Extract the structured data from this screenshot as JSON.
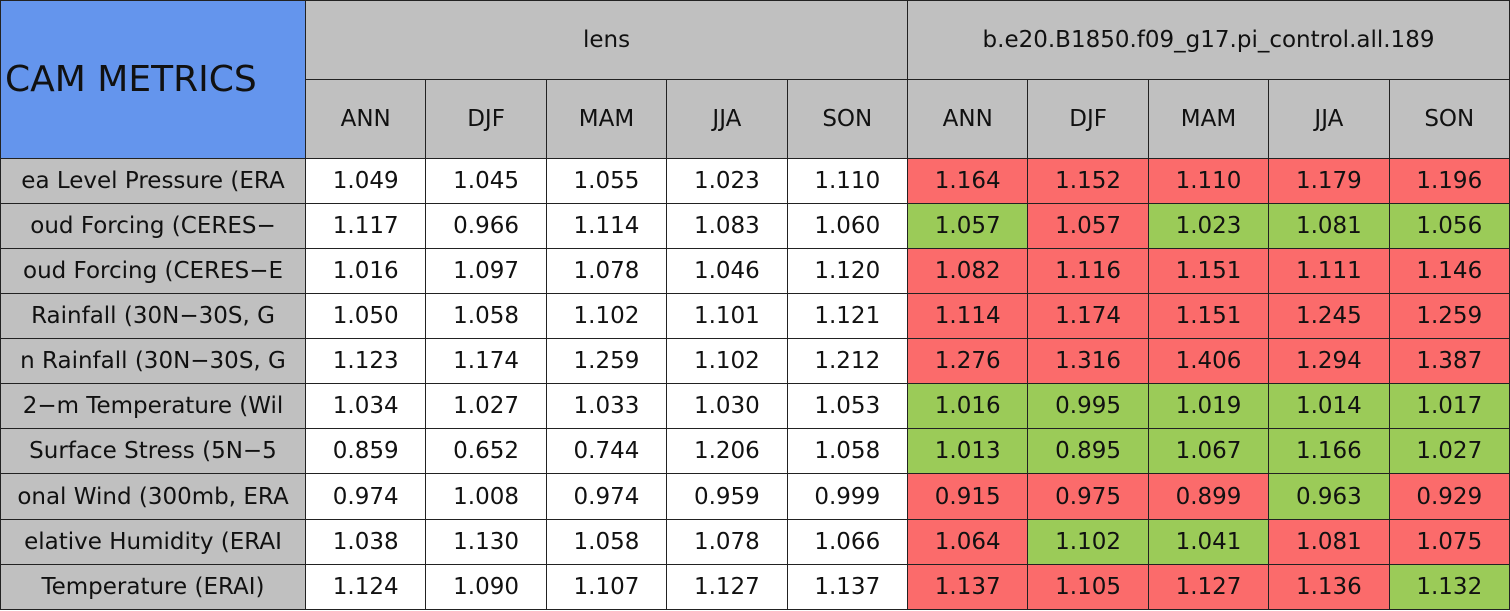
{
  "table": {
    "title": "CAM METRICS",
    "groups": [
      {
        "name": "lens",
        "seasons": [
          "ANN",
          "DJF",
          "MAM",
          "JJA",
          "SON"
        ]
      },
      {
        "name": "b.e20.B1850.f09_g17.pi_control.all.189",
        "seasons": [
          "ANN",
          "DJF",
          "MAM",
          "JJA",
          "SON"
        ]
      }
    ],
    "rows": [
      {
        "label": "ea Level Pressure (ERA",
        "lens": [
          "1.049",
          "1.045",
          "1.055",
          "1.023",
          "1.110"
        ],
        "control": [
          {
            "value": "1.164",
            "color": "#fb6b6b"
          },
          {
            "value": "1.152",
            "color": "#fb6b6b"
          },
          {
            "value": "1.110",
            "color": "#fb6b6b"
          },
          {
            "value": "1.179",
            "color": "#fb6b6b"
          },
          {
            "value": "1.196",
            "color": "#fb6b6b"
          }
        ]
      },
      {
        "label": "oud Forcing (CERES−",
        "lens": [
          "1.117",
          "0.966",
          "1.114",
          "1.083",
          "1.060"
        ],
        "control": [
          {
            "value": "1.057",
            "color": "#9bcb58"
          },
          {
            "value": "1.057",
            "color": "#fb6b6b"
          },
          {
            "value": "1.023",
            "color": "#9bcb58"
          },
          {
            "value": "1.081",
            "color": "#9bcb58"
          },
          {
            "value": "1.056",
            "color": "#9bcb58"
          }
        ]
      },
      {
        "label": "oud Forcing (CERES−E",
        "lens": [
          "1.016",
          "1.097",
          "1.078",
          "1.046",
          "1.120"
        ],
        "control": [
          {
            "value": "1.082",
            "color": "#fb6b6b"
          },
          {
            "value": "1.116",
            "color": "#fb6b6b"
          },
          {
            "value": "1.151",
            "color": "#fb6b6b"
          },
          {
            "value": "1.111",
            "color": "#fb6b6b"
          },
          {
            "value": "1.146",
            "color": "#fb6b6b"
          }
        ]
      },
      {
        "label": "Rainfall (30N−30S, G",
        "lens": [
          "1.050",
          "1.058",
          "1.102",
          "1.101",
          "1.121"
        ],
        "control": [
          {
            "value": "1.114",
            "color": "#fb6b6b"
          },
          {
            "value": "1.174",
            "color": "#fb6b6b"
          },
          {
            "value": "1.151",
            "color": "#fb6b6b"
          },
          {
            "value": "1.245",
            "color": "#fb6b6b"
          },
          {
            "value": "1.259",
            "color": "#fb6b6b"
          }
        ]
      },
      {
        "label": "n Rainfall (30N−30S, G",
        "lens": [
          "1.123",
          "1.174",
          "1.259",
          "1.102",
          "1.212"
        ],
        "control": [
          {
            "value": "1.276",
            "color": "#fb6b6b"
          },
          {
            "value": "1.316",
            "color": "#fb6b6b"
          },
          {
            "value": "1.406",
            "color": "#fb6b6b"
          },
          {
            "value": "1.294",
            "color": "#fb6b6b"
          },
          {
            "value": "1.387",
            "color": "#fb6b6b"
          }
        ]
      },
      {
        "label": "2−m Temperature (Wil",
        "lens": [
          "1.034",
          "1.027",
          "1.033",
          "1.030",
          "1.053"
        ],
        "control": [
          {
            "value": "1.016",
            "color": "#9bcb58"
          },
          {
            "value": "0.995",
            "color": "#9bcb58"
          },
          {
            "value": "1.019",
            "color": "#9bcb58"
          },
          {
            "value": "1.014",
            "color": "#9bcb58"
          },
          {
            "value": "1.017",
            "color": "#9bcb58"
          }
        ]
      },
      {
        "label": "Surface Stress (5N−5",
        "lens": [
          "0.859",
          "0.652",
          "0.744",
          "1.206",
          "1.058"
        ],
        "control": [
          {
            "value": "1.013",
            "color": "#9bcb58"
          },
          {
            "value": "0.895",
            "color": "#9bcb58"
          },
          {
            "value": "1.067",
            "color": "#9bcb58"
          },
          {
            "value": "1.166",
            "color": "#9bcb58"
          },
          {
            "value": "1.027",
            "color": "#9bcb58"
          }
        ]
      },
      {
        "label": "onal Wind (300mb, ERA",
        "lens": [
          "0.974",
          "1.008",
          "0.974",
          "0.959",
          "0.999"
        ],
        "control": [
          {
            "value": "0.915",
            "color": "#fb6b6b"
          },
          {
            "value": "0.975",
            "color": "#fb6b6b"
          },
          {
            "value": "0.899",
            "color": "#fb6b6b"
          },
          {
            "value": "0.963",
            "color": "#9bcb58"
          },
          {
            "value": "0.929",
            "color": "#fb6b6b"
          }
        ]
      },
      {
        "label": "elative Humidity (ERAI",
        "lens": [
          "1.038",
          "1.130",
          "1.058",
          "1.078",
          "1.066"
        ],
        "control": [
          {
            "value": "1.064",
            "color": "#fb6b6b"
          },
          {
            "value": "1.102",
            "color": "#9bcb58"
          },
          {
            "value": "1.041",
            "color": "#9bcb58"
          },
          {
            "value": "1.081",
            "color": "#fb6b6b"
          },
          {
            "value": "1.075",
            "color": "#fb6b6b"
          }
        ]
      },
      {
        "label": "Temperature (ERAI)",
        "lens": [
          "1.124",
          "1.090",
          "1.107",
          "1.127",
          "1.137"
        ],
        "control": [
          {
            "value": "1.137",
            "color": "#fb6b6b"
          },
          {
            "value": "1.105",
            "color": "#fb6b6b"
          },
          {
            "value": "1.127",
            "color": "#fb6b6b"
          },
          {
            "value": "1.136",
            "color": "#fb6b6b"
          },
          {
            "value": "1.132",
            "color": "#9bcb58"
          }
        ]
      }
    ]
  }
}
